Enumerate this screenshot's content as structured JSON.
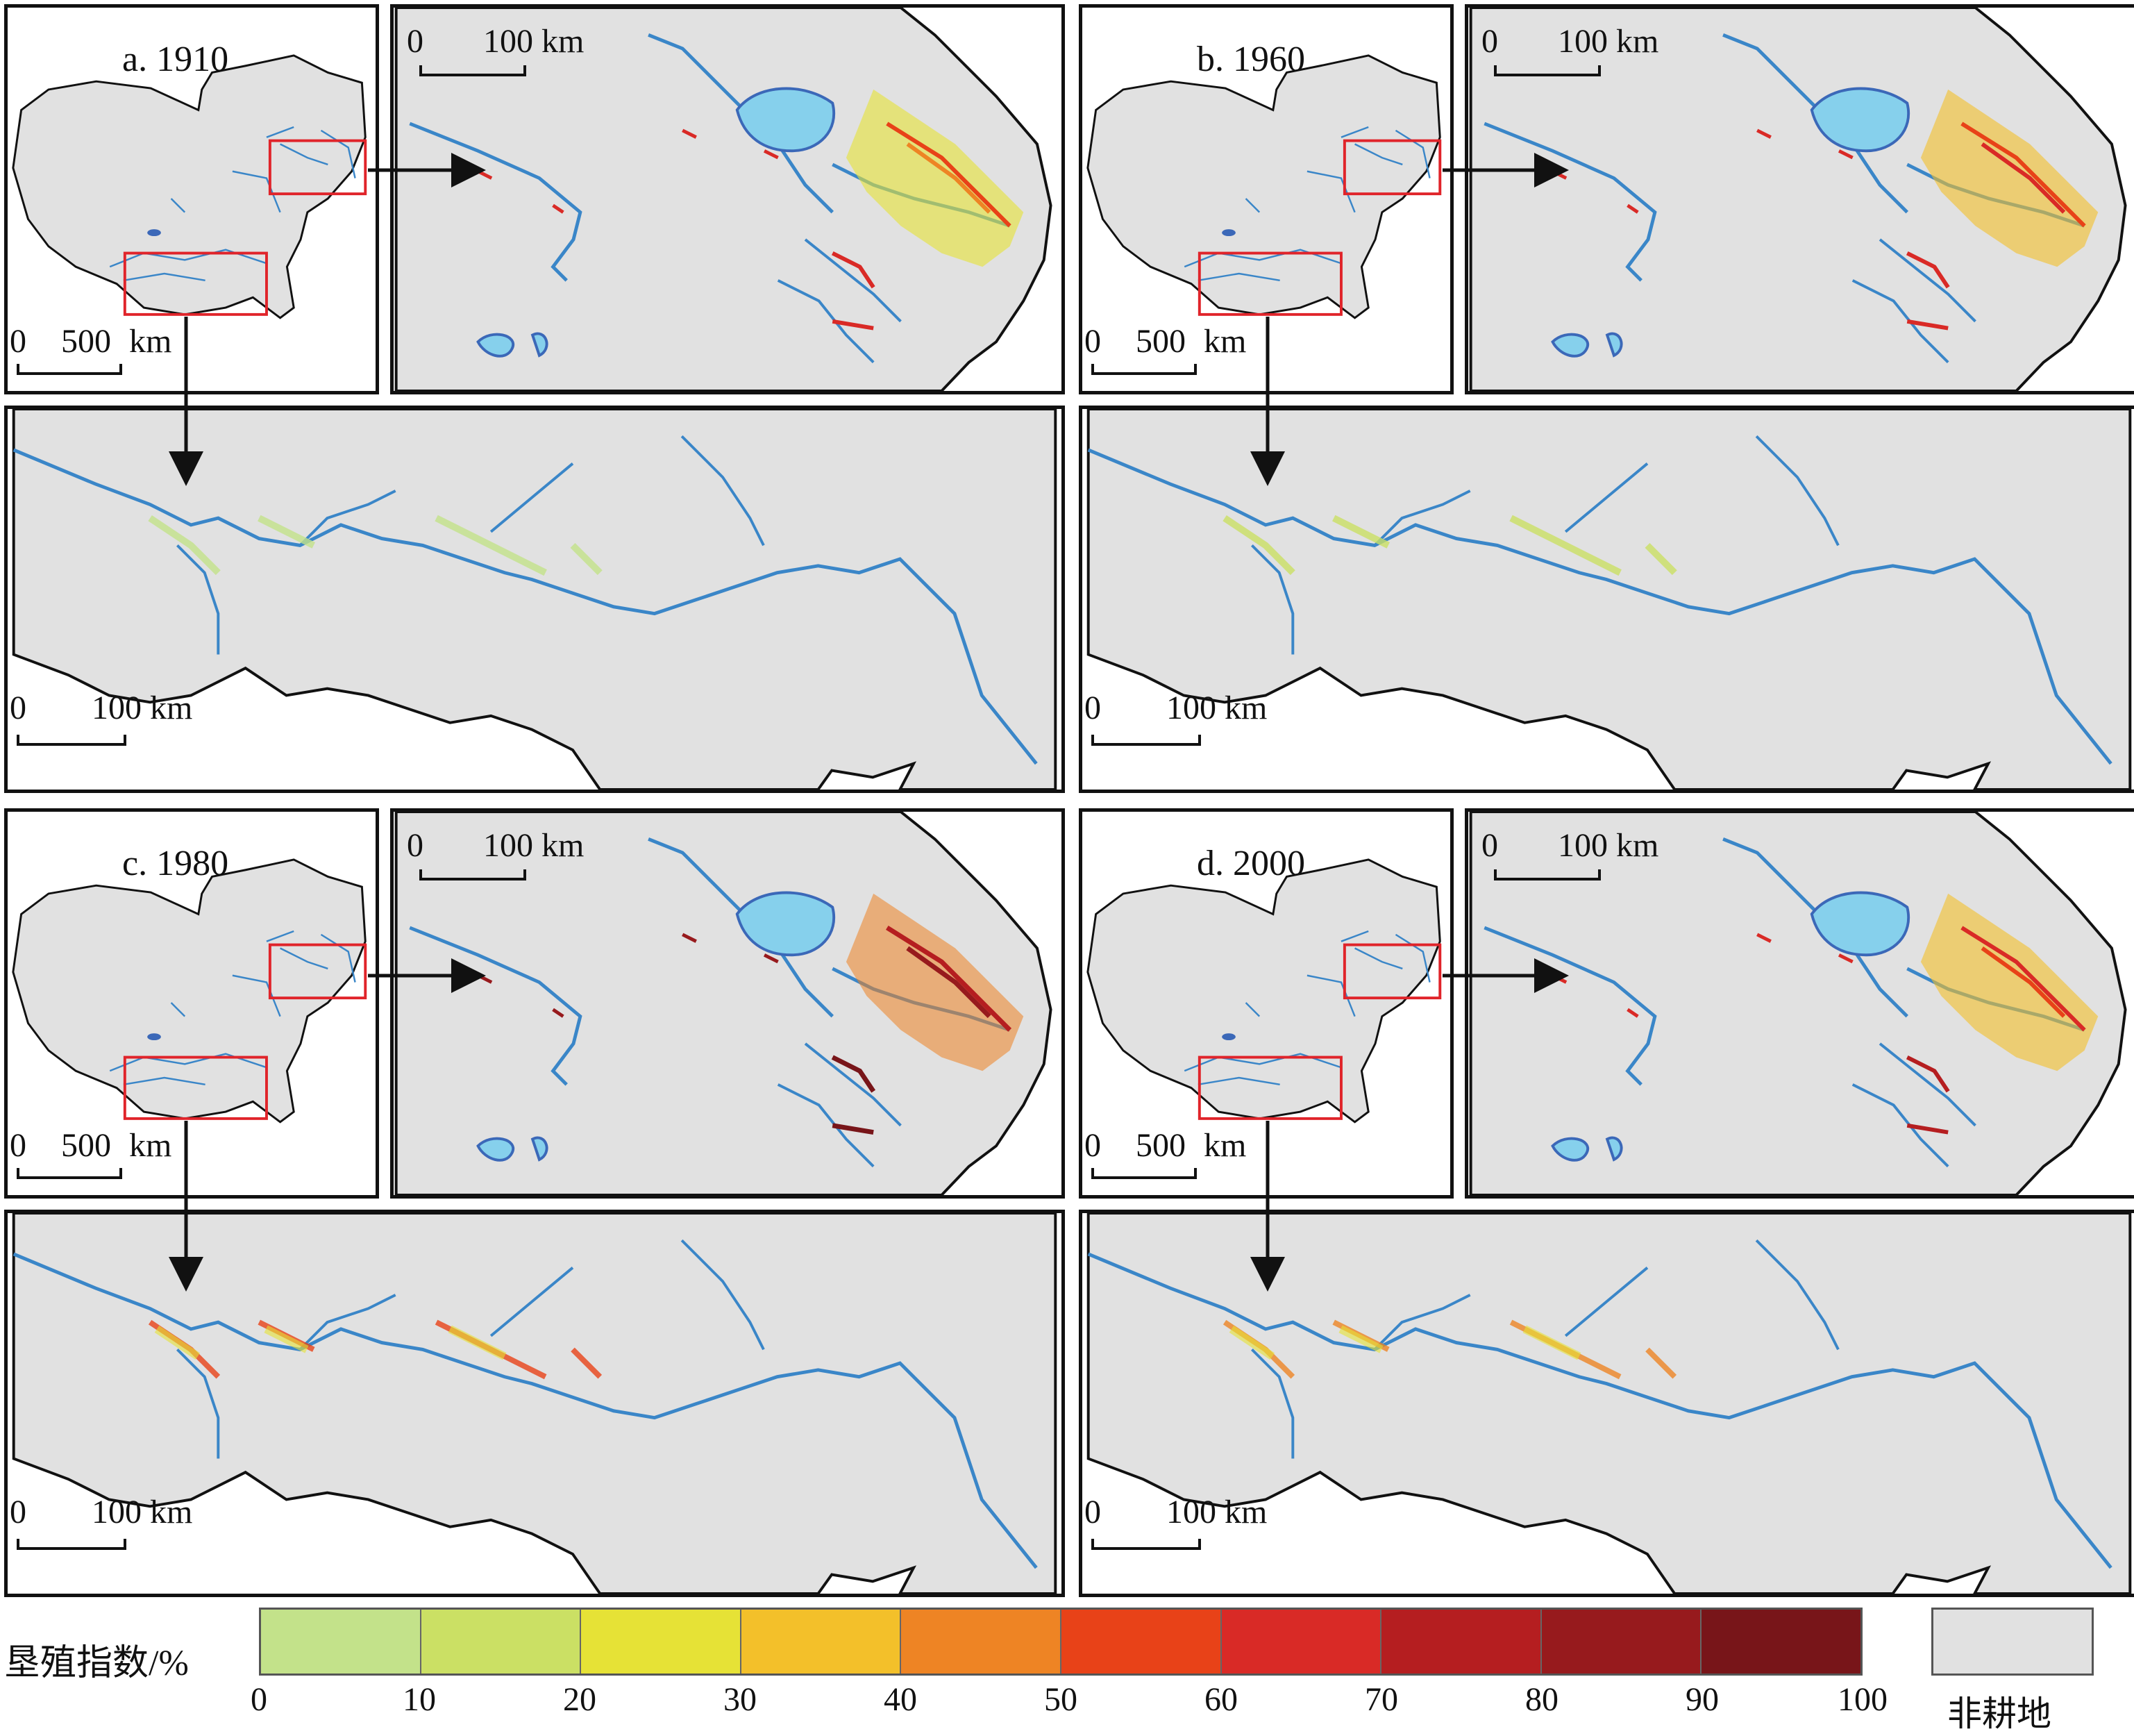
{
  "panels": [
    {
      "title": "a. 1910",
      "scale_overview": [
        "0",
        "500",
        "km"
      ],
      "scale_inset": [
        "0",
        "100 km"
      ],
      "scale_bottom": [
        "0",
        "100 km"
      ]
    },
    {
      "title": "b. 1960",
      "scale_overview": [
        "0",
        "500",
        "km"
      ],
      "scale_inset": [
        "0",
        "100 km"
      ],
      "scale_bottom": [
        "0",
        "100 km"
      ]
    },
    {
      "title": "c. 1980",
      "scale_overview": [
        "0",
        "500",
        "km"
      ],
      "scale_inset": [
        "0",
        "100 km"
      ],
      "scale_bottom": [
        "0",
        "100 km"
      ]
    },
    {
      "title": "d. 2000",
      "scale_overview": [
        "0",
        "500",
        "km"
      ],
      "scale_inset": [
        "0",
        "100 km"
      ],
      "scale_bottom": [
        "0",
        "100 km"
      ]
    }
  ],
  "legend": {
    "title": "垦殖指数/%",
    "colors": [
      "#c3e28a",
      "#cbe064",
      "#e6e236",
      "#f3c02a",
      "#ee8424",
      "#e84218",
      "#d92a26",
      "#b51e20",
      "#971a1d",
      "#781519"
    ],
    "ticks": [
      "0",
      "10",
      "20",
      "30",
      "40",
      "50",
      "60",
      "70",
      "80",
      "90",
      "100"
    ],
    "nonfarm_label": "非耕地",
    "nonfarm_color": "#e1e1e1"
  },
  "colors": {
    "land": "#e1e1e1",
    "river": "#3a86c8",
    "lake": "#86d0ec",
    "lake_edge": "#3b68b8",
    "highlight_box": "#e0242a",
    "border": "#111111"
  }
}
